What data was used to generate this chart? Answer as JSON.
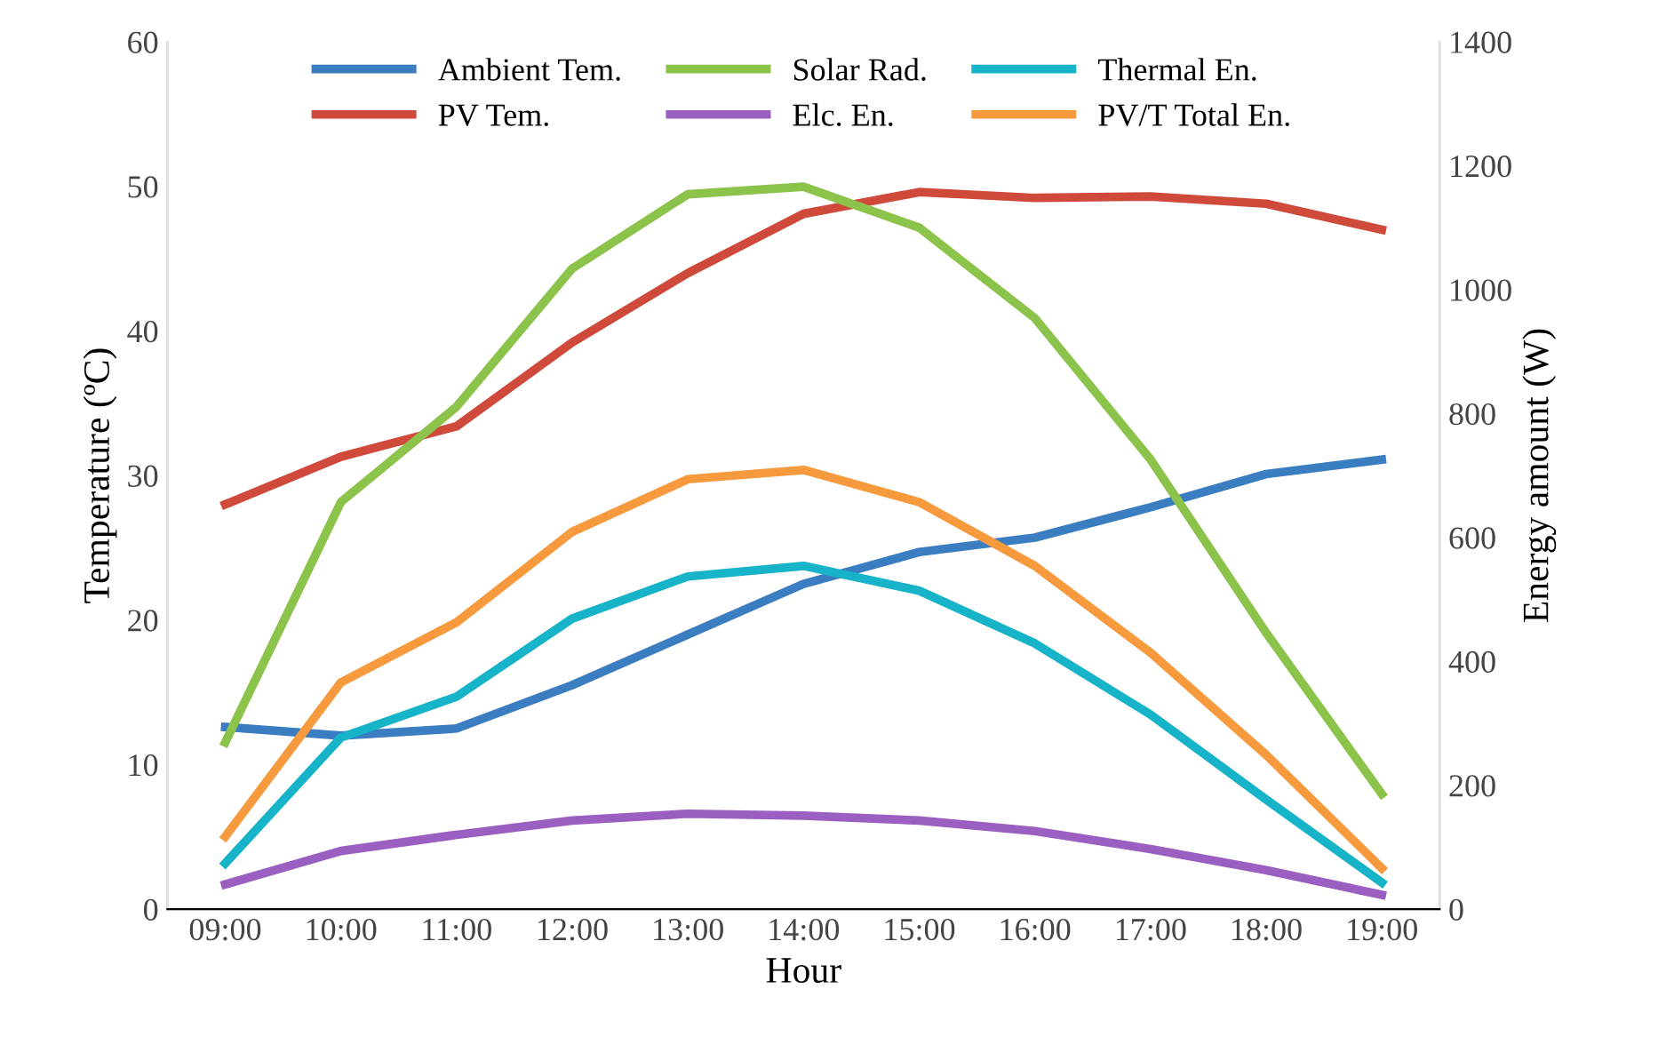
{
  "chart_data": {
    "type": "line",
    "xlabel": "Hour",
    "ylabel": "Temperature (ºC)",
    "y2label": "Energy amount (W)",
    "categories": [
      "09:00",
      "10:00",
      "11:00",
      "12:00",
      "13:00",
      "14:00",
      "15:00",
      "16:00",
      "17:00",
      "18:00",
      "19:00"
    ],
    "ylim": [
      0,
      60
    ],
    "yticks": [
      0,
      10,
      20,
      30,
      40,
      50,
      60
    ],
    "y2lim": [
      0,
      1400
    ],
    "y2ticks": [
      0,
      200,
      400,
      600,
      800,
      1000,
      1200,
      1400
    ],
    "legend": "top",
    "grid": false,
    "marker": "none",
    "line_style": "solid",
    "series": [
      {
        "name": "Ambient Tem.",
        "color": "#3a7dc0",
        "values": [
          12.6,
          12.0,
          12.5,
          15.5,
          19.0,
          22.5,
          24.7,
          25.7,
          27.8,
          30.1,
          31.1
        ]
      },
      {
        "name": "PV Tem.",
        "color": "#d04a3c",
        "values": [
          28.0,
          31.3,
          33.4,
          39.2,
          44.0,
          48.1,
          49.6,
          49.2,
          49.3,
          48.8,
          47.0
        ]
      },
      {
        "name": "Solar Rad.",
        "color": "#8cc34a",
        "axis": "y2",
        "values": [
          269,
          657,
          811,
          1034,
          1154,
          1166,
          1100,
          954,
          726,
          446,
          186
        ]
      },
      {
        "name": "Elc. En.",
        "color": "#9a5fc0",
        "axis": "y2",
        "values": [
          40,
          94,
          120,
          143,
          154,
          151,
          143,
          126,
          97,
          63,
          23
        ]
      },
      {
        "name": "Thermal En.",
        "color": "#17b3c8",
        "axis": "y2",
        "values": [
          74,
          277,
          343,
          469,
          537,
          554,
          514,
          429,
          314,
          177,
          43
        ]
      },
      {
        "name": "PV/T Total En.",
        "color": "#f79a3e",
        "axis": "y2",
        "values": [
          117,
          366,
          463,
          609,
          694,
          709,
          657,
          554,
          414,
          249,
          66
        ]
      }
    ]
  }
}
